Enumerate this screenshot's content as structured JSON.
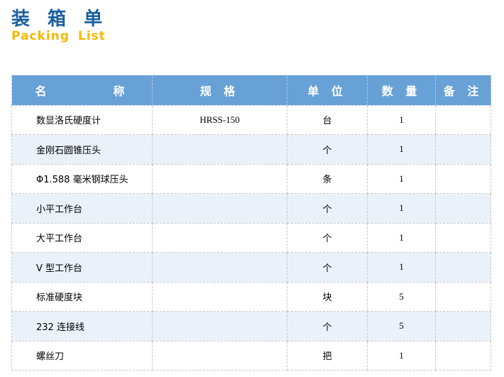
{
  "title": "装 箱 单",
  "subtitle": "Packing  List",
  "columns": [
    "名　　　　称",
    "规 格",
    "单 位",
    "数 量",
    "备 注"
  ],
  "rows": [
    {
      "name": "数显洛氏硬度计",
      "spec": "HRSS-150",
      "unit": "台",
      "qty": "1",
      "note": ""
    },
    {
      "name": "金刚石圆锥压头",
      "spec": "",
      "unit": "个",
      "qty": "1",
      "note": ""
    },
    {
      "name": "Φ1.588 毫米钢球压头",
      "spec": "",
      "unit": "条",
      "qty": "1",
      "note": ""
    },
    {
      "name": "小平工作台",
      "spec": "",
      "unit": "个",
      "qty": "1",
      "note": ""
    },
    {
      "name": "大平工作台",
      "spec": "",
      "unit": "个",
      "qty": "1",
      "note": ""
    },
    {
      "name": "V 型工作台",
      "spec": "",
      "unit": "个",
      "qty": "1",
      "note": ""
    },
    {
      "name": "标准硬度块",
      "spec": "",
      "unit": "块",
      "qty": "5",
      "note": ""
    },
    {
      "name": "232 连接线",
      "spec": "",
      "unit": "个",
      "qty": "5",
      "note": ""
    },
    {
      "name": "螺丝刀",
      "spec": "",
      "unit": "把",
      "qty": "1",
      "note": ""
    }
  ],
  "colors": {
    "header": "#67a1d6",
    "title": "#1a5fa0",
    "subtitle": "#f5b800",
    "stripe": "#eaf1f9"
  }
}
